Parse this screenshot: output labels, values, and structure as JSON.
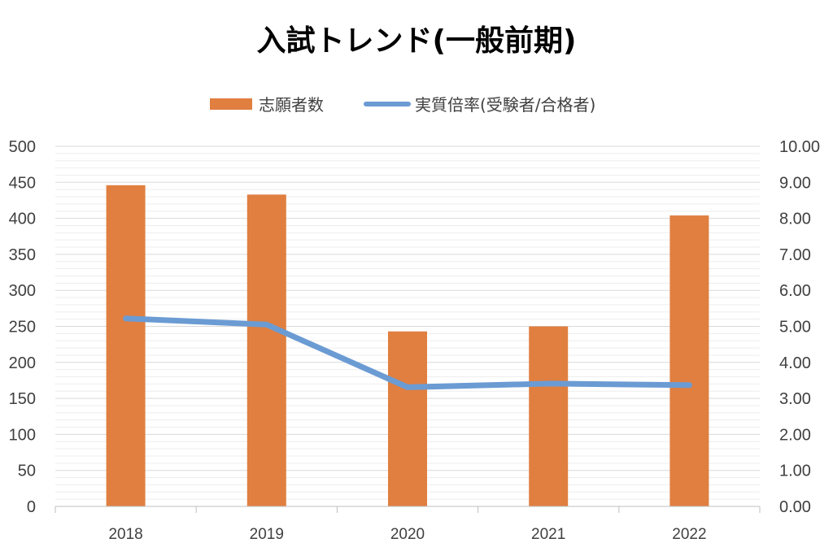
{
  "chart_data": {
    "type": "bar",
    "title": "入試トレンド(一般前期)",
    "categories": [
      "2018",
      "2019",
      "2020",
      "2021",
      "2022"
    ],
    "series": [
      {
        "name": "志願者数",
        "type": "bar",
        "axis": "left",
        "color": "#e07f40",
        "values": [
          446,
          433,
          243,
          250,
          404
        ]
      },
      {
        "name": "実質倍率(受験者/合格者)",
        "type": "line",
        "axis": "right",
        "color": "#6b9bd3",
        "values": [
          5.22,
          5.05,
          3.31,
          3.41,
          3.37
        ]
      }
    ],
    "y_left": {
      "min": 0,
      "max": 500,
      "step": 50,
      "tick_labels": [
        "0",
        "50",
        "100",
        "150",
        "200",
        "250",
        "300",
        "350",
        "400",
        "450",
        "500"
      ]
    },
    "y_right": {
      "min": 0,
      "max": 10,
      "step": 1,
      "tick_labels": [
        "0.00",
        "1.00",
        "2.00",
        "3.00",
        "4.00",
        "5.00",
        "6.00",
        "7.00",
        "8.00",
        "9.00",
        "10.00"
      ]
    },
    "grid": true,
    "legend_position": "top-center"
  }
}
